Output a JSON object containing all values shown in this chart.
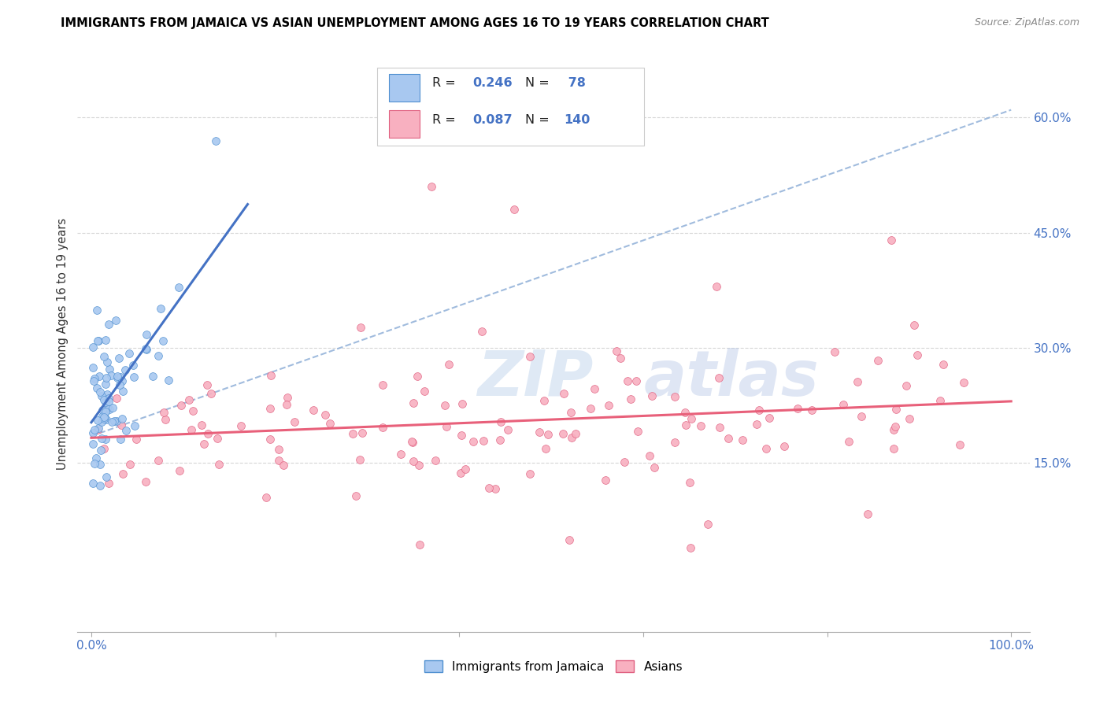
{
  "title": "IMMIGRANTS FROM JAMAICA VS ASIAN UNEMPLOYMENT AMONG AGES 16 TO 19 YEARS CORRELATION CHART",
  "source": "Source: ZipAtlas.com",
  "ylabel": "Unemployment Among Ages 16 to 19 years",
  "x_tick_labels_show": [
    "0.0%",
    "100.0%"
  ],
  "x_tick_positions_show": [
    0.0,
    1.0
  ],
  "y_tick_labels": [
    "15.0%",
    "30.0%",
    "45.0%",
    "60.0%"
  ],
  "y_tick_values": [
    0.15,
    0.3,
    0.45,
    0.6
  ],
  "legend_label1": "Immigrants from Jamaica",
  "legend_label2": "Asians",
  "color_blue_fill": "#A8C8F0",
  "color_blue_edge": "#5090D0",
  "color_pink_fill": "#F8B0C0",
  "color_pink_edge": "#E06080",
  "color_blue_line": "#4472C4",
  "color_pink_line": "#E8607A",
  "color_dashed": "#90B0D8",
  "color_text_blue": "#4472C4",
  "color_grid": "#CCCCCC",
  "background_color": "#FFFFFF",
  "legend_r1": "R = 0.246",
  "legend_n1": "N =  78",
  "legend_r2": "R = 0.087",
  "legend_n2": "N = 140"
}
